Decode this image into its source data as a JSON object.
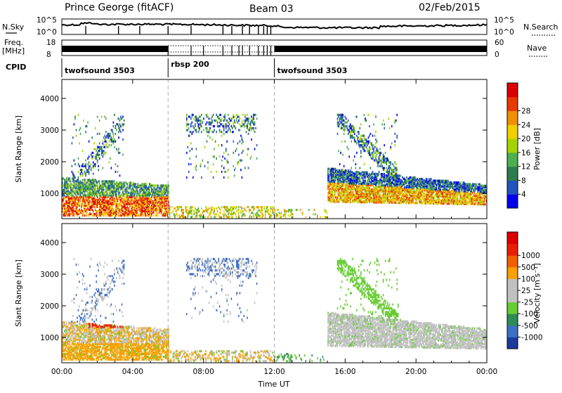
{
  "header": {
    "station": "Prince George (fitACF)",
    "beam": "Beam 03",
    "date": "02/Feb/2015"
  },
  "aux": {
    "nsky_label": "N.Sky",
    "nsky_ticks": [
      "10^5",
      "10^0"
    ],
    "nsearch_label": "N.Search",
    "nsearch_ticks": [
      "10^5",
      "10^0"
    ],
    "freq_label": "Freq.",
    "freq_unit": "[MHz]",
    "freq_ticks": [
      "18",
      "8"
    ],
    "nave_label": "Nave",
    "nave_ticks": [
      "60",
      "0"
    ],
    "cpid_label": "CPID",
    "cpid_segments": [
      {
        "name": "twofsound 3503",
        "start_h": 0,
        "end_h": 6
      },
      {
        "name": "rbsp 200",
        "start_h": 6,
        "end_h": 12
      },
      {
        "name": "twofsound 3503",
        "start_h": 12,
        "end_h": 24
      }
    ]
  },
  "chart_data": [
    {
      "type": "heatmap",
      "ylabel": "Slant Range [km]",
      "x_ticks": [
        "00:00",
        "04:00",
        "08:00",
        "12:00",
        "16:00",
        "20:00",
        "00:00"
      ],
      "x_tick_values": [
        0,
        4,
        8,
        12,
        16,
        20,
        24
      ],
      "xlim": [
        0,
        24
      ],
      "ylim": [
        200,
        4600
      ],
      "y_ticks": [
        "1000",
        "2000",
        "3000",
        "4000"
      ],
      "y_tick_values": [
        1000,
        2000,
        3000,
        4000
      ],
      "colorbar": {
        "label": "Power [dB]",
        "ticks": [
          "4",
          "8",
          "12",
          "16",
          "20",
          "24",
          "28"
        ],
        "colors": [
          "#0000ee",
          "#2255bb",
          "#2e7d4f",
          "#4caf50",
          "#a4d400",
          "#f0d000",
          "#f09000",
          "#e83a00",
          "#dd0000"
        ]
      }
    },
    {
      "type": "heatmap",
      "ylabel": "Slant Range [km]",
      "xlabel": "Time UT",
      "x_ticks": [
        "00:00",
        "04:00",
        "08:00",
        "12:00",
        "16:00",
        "20:00",
        "00:00"
      ],
      "x_tick_values": [
        0,
        4,
        8,
        12,
        16,
        20,
        24
      ],
      "xlim": [
        0,
        24
      ],
      "ylim": [
        200,
        4600
      ],
      "y_ticks": [
        "1000",
        "2000",
        "3000",
        "4000"
      ],
      "y_tick_values": [
        1000,
        2000,
        3000,
        4000
      ],
      "colorbar": {
        "label": "Velocity [m s⁻¹]",
        "ticks": [
          "1000",
          "500",
          "100",
          "25",
          "-25",
          "-100",
          "-500",
          "-1000"
        ],
        "colors": [
          "#1a3a9e",
          "#3d6fc4",
          "#2e8b57",
          "#66cc33",
          "#c0c0c0",
          "#c0c0c0",
          "#f7a000",
          "#f06000",
          "#e82000",
          "#dd0000"
        ]
      }
    }
  ]
}
